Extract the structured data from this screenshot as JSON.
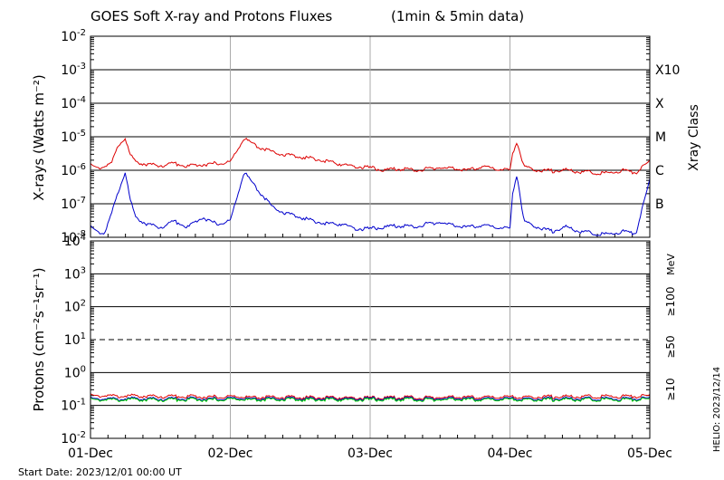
{
  "chart_data": [
    {
      "type": "line",
      "title": "GOES Soft X-ray and Protons Fluxes",
      "subtitle": "(1min & 5min data)",
      "ylabel": "X-rays (Watts m⁻²)",
      "yscale": "log",
      "ylim": [
        1e-08,
        0.01
      ],
      "ytick_exponents": [
        -8,
        -7,
        -6,
        -5,
        -4,
        -3,
        -2
      ],
      "grid": true,
      "right_axis_label": "Xray Class",
      "class_labels": [
        {
          "label": "B",
          "level": 1e-07
        },
        {
          "label": "C",
          "level": 1e-06
        },
        {
          "label": "M",
          "level": 1e-05
        },
        {
          "label": "X",
          "level": 0.0001
        },
        {
          "label": "X10",
          "level": 0.001
        }
      ],
      "x_tick_labels": [
        "01-Dec",
        "02-Dec",
        "03-Dec",
        "04-Dec",
        "05-Dec"
      ],
      "x_days": [
        0,
        1,
        2,
        3,
        4
      ],
      "series": [
        {
          "color": "#dd0000",
          "x_days": [
            0,
            0.05,
            0.1,
            0.15,
            0.2,
            0.25,
            0.28,
            0.32,
            0.4,
            0.5,
            0.6,
            0.7,
            0.8,
            0.9,
            1.0,
            1.1,
            1.2,
            1.3,
            1.4,
            1.5,
            1.6,
            1.7,
            1.8,
            1.9,
            2.0,
            2.1,
            2.2,
            2.3,
            2.4,
            2.5,
            2.6,
            2.7,
            2.8,
            2.9,
            3.0,
            3.02,
            3.05,
            3.1,
            3.2,
            3.3,
            3.4,
            3.5,
            3.6,
            3.7,
            3.8,
            3.9,
            4.0
          ],
          "values": [
            1.4e-06,
            1.2e-06,
            1.3e-06,
            1.6e-06,
            6e-06,
            9e-06,
            3e-06,
            1.8e-06,
            1.5e-06,
            1.4e-06,
            1.6e-06,
            1.3e-06,
            1.5e-06,
            1.6e-06,
            1.7e-06,
            9e-06,
            5e-06,
            3.5e-06,
            2.8e-06,
            2.5e-06,
            2.2e-06,
            1.8e-06,
            1.5e-06,
            1.3e-06,
            1.2e-06,
            1e-06,
            1.1e-06,
            1e-06,
            1.1e-06,
            1.2e-06,
            1.1e-06,
            1e-06,
            1.3e-06,
            1.1e-06,
            1e-06,
            3e-06,
            7.5e-06,
            1.3e-06,
            1e-06,
            9.5e-07,
            1e-06,
            9e-07,
            8.5e-07,
            8e-07,
            1e-06,
            8.5e-07,
            1.8e-06
          ]
        },
        {
          "color": "#0000cc",
          "x_days": [
            0,
            0.05,
            0.1,
            0.15,
            0.2,
            0.25,
            0.28,
            0.32,
            0.4,
            0.5,
            0.6,
            0.7,
            0.8,
            0.9,
            1.0,
            1.1,
            1.2,
            1.3,
            1.4,
            1.5,
            1.6,
            1.7,
            1.8,
            1.9,
            2.0,
            2.1,
            2.2,
            2.3,
            2.4,
            2.5,
            2.6,
            2.7,
            2.8,
            2.9,
            3.0,
            3.02,
            3.05,
            3.1,
            3.2,
            3.3,
            3.4,
            3.5,
            3.6,
            3.7,
            3.8,
            3.9,
            4.0
          ],
          "values": [
            2e-08,
            1.5e-08,
            1.3e-08,
            5e-08,
            2.5e-07,
            9e-07,
            1.5e-07,
            4e-08,
            2.5e-08,
            2e-08,
            3e-08,
            2e-08,
            4e-08,
            2.5e-08,
            3e-08,
            9e-07,
            2.5e-07,
            8e-08,
            5e-08,
            4e-08,
            3e-08,
            2.5e-08,
            2.5e-08,
            1.8e-08,
            1.8e-08,
            2e-08,
            2.2e-08,
            2e-08,
            2.5e-08,
            2.8e-08,
            2.2e-08,
            2e-08,
            2.3e-08,
            2e-08,
            1.8e-08,
            2e-07,
            8e-07,
            3e-08,
            2e-08,
            1.5e-08,
            2e-08,
            1.5e-08,
            1.3e-08,
            1.2e-08,
            1.5e-08,
            1.3e-08,
            5e-07
          ]
        }
      ]
    },
    {
      "type": "line",
      "ylabel": "Protons (cm⁻²s⁻¹sr⁻¹)",
      "yscale": "log",
      "ylim": [
        0.01,
        10000
      ],
      "ytick_exponents": [
        -2,
        -1,
        0,
        1,
        2,
        3,
        4
      ],
      "grid": true,
      "dashed_level": 10,
      "right_axis_unit": "MeV",
      "x_tick_labels": [
        "01-Dec",
        "02-Dec",
        "03-Dec",
        "04-Dec",
        "05-Dec"
      ],
      "x_days": [
        0,
        1,
        2,
        3,
        4
      ],
      "series": [
        {
          "name": "≥10",
          "color": "#dd0000",
          "x_days": [
            0,
            1,
            2,
            3,
            4
          ],
          "values": [
            0.2,
            0.18,
            0.17,
            0.18,
            0.19
          ]
        },
        {
          "name": "≥50",
          "color": "#0000cc",
          "x_days": [
            0,
            1,
            2,
            3,
            4
          ],
          "values": [
            0.16,
            0.16,
            0.16,
            0.16,
            0.16
          ]
        },
        {
          "name": "≥100",
          "color": "#00cc00",
          "x_days": [
            0,
            1,
            2,
            3,
            4
          ],
          "values": [
            0.15,
            0.15,
            0.15,
            0.15,
            0.15
          ]
        }
      ]
    }
  ],
  "footer": {
    "start_date": "Start Date: 2023/12/01 00:00 UT",
    "helio_stamp": "HELIO: 2023/12/14"
  }
}
